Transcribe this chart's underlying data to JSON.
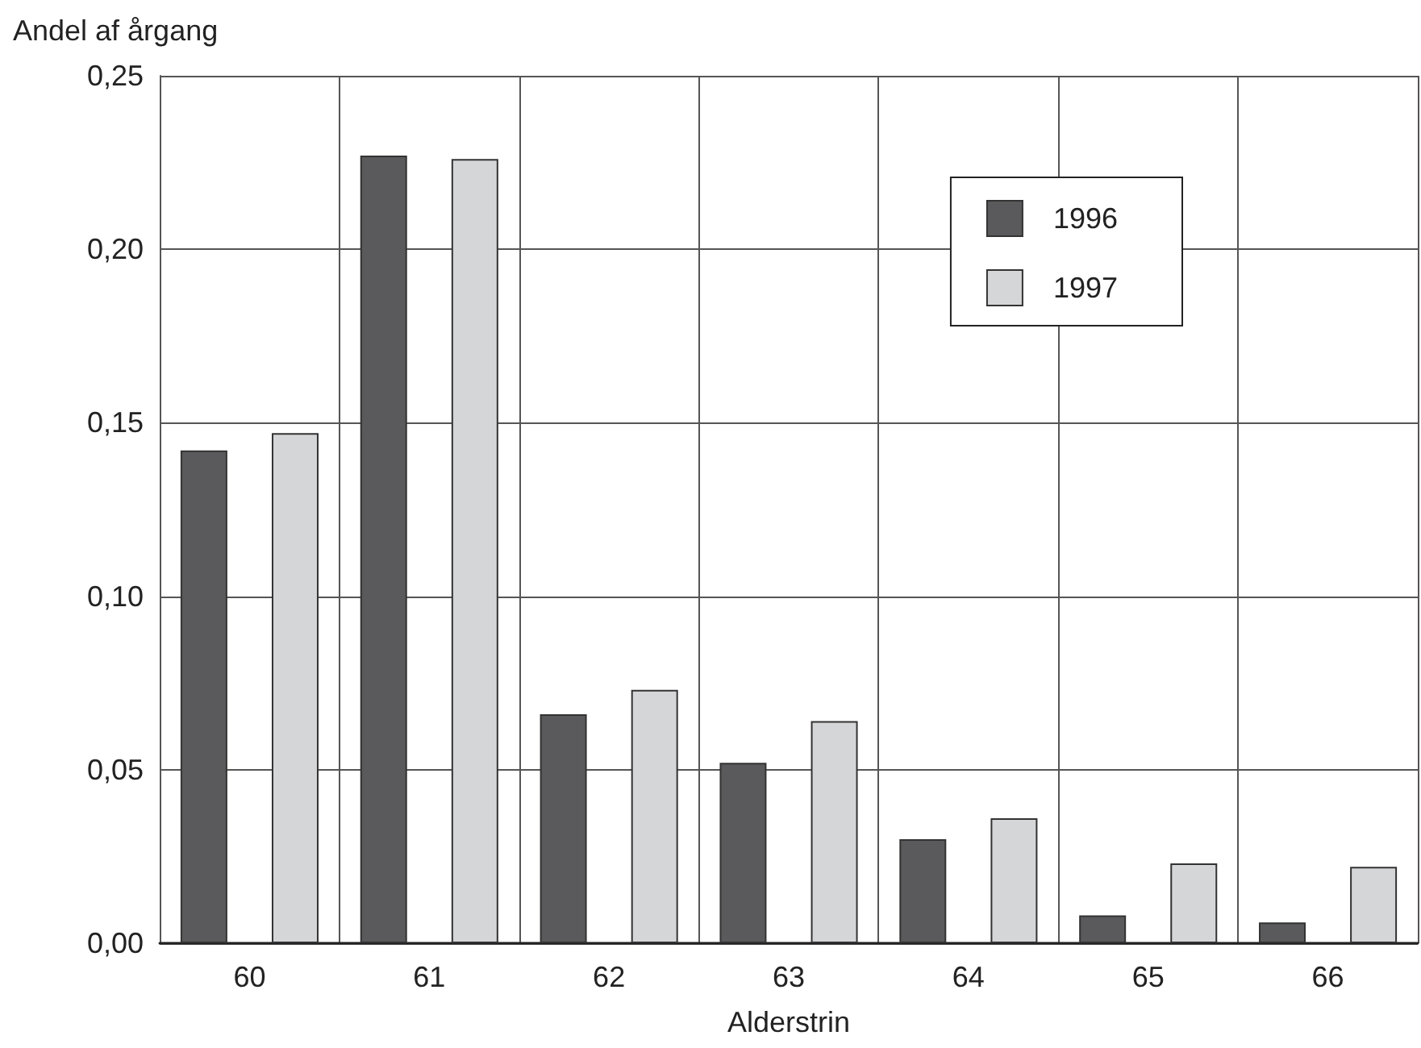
{
  "chart_data": {
    "type": "bar",
    "xlabel": "Alderstrin",
    "ylabel": "Andel af årgang",
    "categories": [
      "60",
      "61",
      "62",
      "63",
      "64",
      "65",
      "66"
    ],
    "series": [
      {
        "name": "1996",
        "color": "#5a5a5c",
        "values": [
          0.142,
          0.227,
          0.066,
          0.052,
          0.03,
          0.008,
          0.006
        ]
      },
      {
        "name": "1997",
        "color": "#d5d6d8",
        "values": [
          0.147,
          0.226,
          0.073,
          0.064,
          0.036,
          0.023,
          0.022
        ]
      }
    ],
    "ylim": [
      0,
      0.25
    ],
    "yticks": [
      {
        "value": 0,
        "label": "0,00"
      },
      {
        "value": 0.05,
        "label": "0,05"
      },
      {
        "value": 0.1,
        "label": "0,10"
      },
      {
        "value": 0.15,
        "label": "0,15"
      },
      {
        "value": 0.2,
        "label": "0,20"
      },
      {
        "value": 0.25,
        "label": "0,25"
      }
    ],
    "grid": true,
    "legend": "top right"
  }
}
